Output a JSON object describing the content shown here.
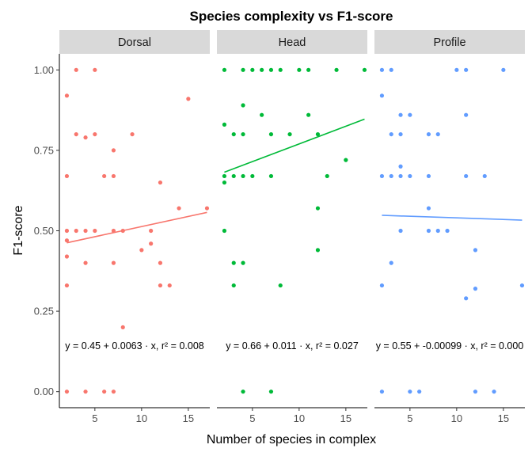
{
  "chart_data": {
    "type": "scatter",
    "title": "Species complexity vs F1-score",
    "xlabel": "Number of species in complex",
    "ylabel": "F1-score",
    "xlim": [
      1.2,
      17.3
    ],
    "ylim": [
      -0.05,
      1.05
    ],
    "x_ticks": [
      5,
      10,
      15
    ],
    "x_tick_labels": [
      "5",
      "10",
      "15"
    ],
    "y_ticks": [
      0,
      0.25,
      0.5,
      0.75,
      1.0
    ],
    "y_tick_labels": [
      "0.00",
      "0.25",
      "0.50",
      "0.75",
      "1.00"
    ],
    "grid": false,
    "legend": "none",
    "panels": [
      {
        "name": "Dorsal",
        "color": "#F8766D",
        "equation": "y = 0.45 + 0.0063 · x,  r² = 0.008",
        "trend": {
          "intercept": 0.45,
          "slope": 0.0063
        },
        "points": [
          [
            2,
            0.92
          ],
          [
            3,
            1.0
          ],
          [
            5,
            1.0
          ],
          [
            15,
            0.91
          ],
          [
            3,
            0.8
          ],
          [
            4,
            0.79
          ],
          [
            5,
            0.8
          ],
          [
            9,
            0.8
          ],
          [
            7,
            0.75
          ],
          [
            2,
            0.67
          ],
          [
            6,
            0.67
          ],
          [
            7,
            0.67
          ],
          [
            12,
            0.65
          ],
          [
            14,
            0.57
          ],
          [
            17,
            0.57
          ],
          [
            2,
            0.5
          ],
          [
            3,
            0.5
          ],
          [
            4,
            0.5
          ],
          [
            5,
            0.5
          ],
          [
            7,
            0.5
          ],
          [
            8,
            0.5
          ],
          [
            11,
            0.5
          ],
          [
            2,
            0.47
          ],
          [
            11,
            0.46
          ],
          [
            10,
            0.44
          ],
          [
            2,
            0.42
          ],
          [
            4,
            0.4
          ],
          [
            7,
            0.4
          ],
          [
            12,
            0.4
          ],
          [
            2,
            0.33
          ],
          [
            12,
            0.33
          ],
          [
            13,
            0.33
          ],
          [
            8,
            0.2
          ],
          [
            2,
            0.0
          ],
          [
            4,
            0.0
          ],
          [
            6,
            0.0
          ],
          [
            7,
            0.0
          ]
        ]
      },
      {
        "name": "Head",
        "color": "#00BA38",
        "equation": "y = 0.66 + 0.011 · x,  r² = 0.027",
        "trend": {
          "intercept": 0.66,
          "slope": 0.011
        },
        "points": [
          [
            2,
            1.0
          ],
          [
            4,
            1.0
          ],
          [
            5,
            1.0
          ],
          [
            6,
            1.0
          ],
          [
            7,
            1.0
          ],
          [
            8,
            1.0
          ],
          [
            10,
            1.0
          ],
          [
            11,
            1.0
          ],
          [
            14,
            1.0
          ],
          [
            17,
            1.0
          ],
          [
            4,
            0.89
          ],
          [
            6,
            0.86
          ],
          [
            11,
            0.86
          ],
          [
            2,
            0.83
          ],
          [
            3,
            0.8
          ],
          [
            4,
            0.8
          ],
          [
            7,
            0.8
          ],
          [
            9,
            0.8
          ],
          [
            12,
            0.8
          ],
          [
            15,
            0.72
          ],
          [
            2,
            0.67
          ],
          [
            3,
            0.67
          ],
          [
            4,
            0.67
          ],
          [
            5,
            0.67
          ],
          [
            7,
            0.67
          ],
          [
            13,
            0.67
          ],
          [
            2,
            0.65
          ],
          [
            12,
            0.57
          ],
          [
            2,
            0.5
          ],
          [
            12,
            0.44
          ],
          [
            3,
            0.4
          ],
          [
            4,
            0.4
          ],
          [
            3,
            0.33
          ],
          [
            8,
            0.33
          ],
          [
            4,
            0.0
          ],
          [
            7,
            0.0
          ]
        ]
      },
      {
        "name": "Profile",
        "color": "#619CFF",
        "equation": "y = 0.55 + -0.00099 · x,  r² = 0.000",
        "trend": {
          "intercept": 0.55,
          "slope": -0.00099
        },
        "points": [
          [
            2,
            1.0
          ],
          [
            3,
            1.0
          ],
          [
            10,
            1.0
          ],
          [
            11,
            1.0
          ],
          [
            15,
            1.0
          ],
          [
            2,
            0.92
          ],
          [
            4,
            0.86
          ],
          [
            5,
            0.86
          ],
          [
            11,
            0.86
          ],
          [
            3,
            0.8
          ],
          [
            4,
            0.8
          ],
          [
            7,
            0.8
          ],
          [
            8,
            0.8
          ],
          [
            4,
            0.7
          ],
          [
            2,
            0.67
          ],
          [
            3,
            0.67
          ],
          [
            4,
            0.67
          ],
          [
            5,
            0.67
          ],
          [
            7,
            0.67
          ],
          [
            11,
            0.67
          ],
          [
            13,
            0.67
          ],
          [
            7,
            0.57
          ],
          [
            4,
            0.5
          ],
          [
            7,
            0.5
          ],
          [
            8,
            0.5
          ],
          [
            9,
            0.5
          ],
          [
            12,
            0.44
          ],
          [
            3,
            0.4
          ],
          [
            2,
            0.33
          ],
          [
            17,
            0.33
          ],
          [
            12,
            0.32
          ],
          [
            11,
            0.29
          ],
          [
            2,
            0.0
          ],
          [
            5,
            0.0
          ],
          [
            6,
            0.0
          ],
          [
            12,
            0.0
          ],
          [
            14,
            0.0
          ]
        ]
      }
    ]
  }
}
